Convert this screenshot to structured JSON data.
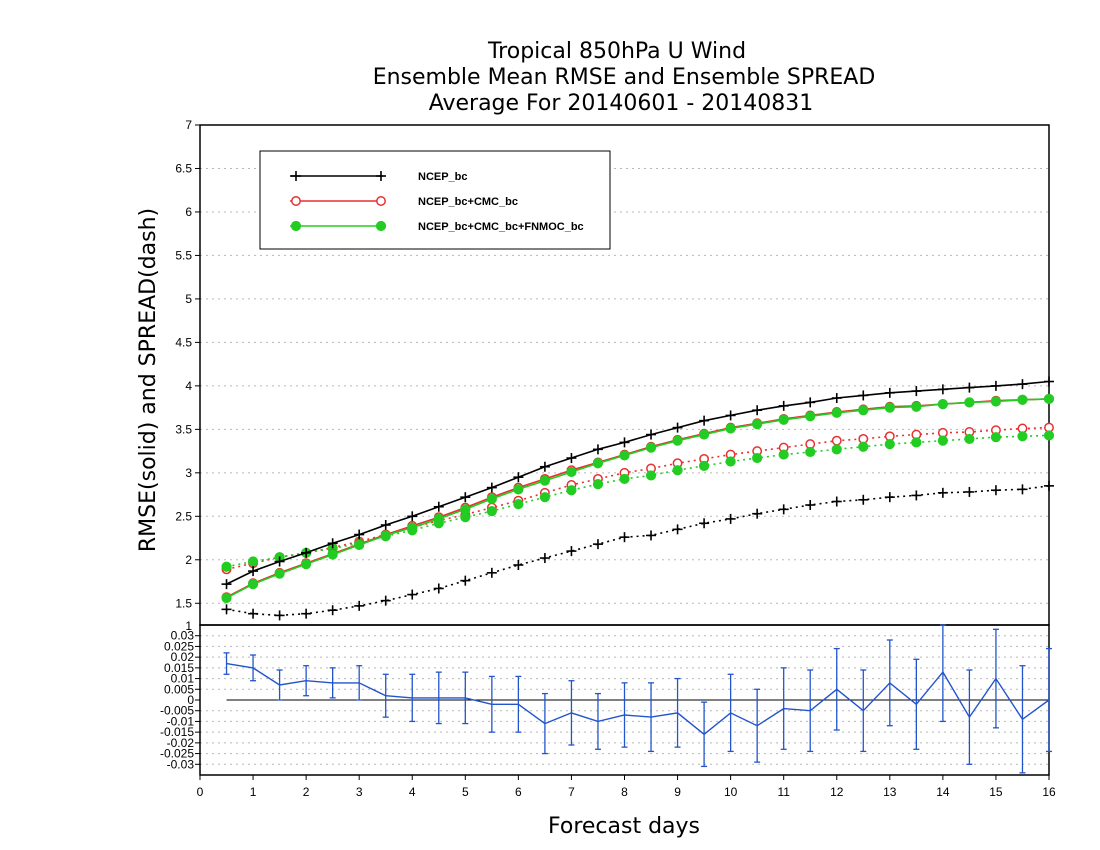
{
  "title_lines": [
    "Tropical 850hPa U Wind",
    "Ensemble Mean RMSE and Ensemble SPREAD",
    "Average For 20140601 - 20140831"
  ],
  "colors": {
    "ncep": "#000000",
    "ncep_cmc": "#e83030",
    "ncep_cmc_fnmoc": "#22cc22",
    "diff": "#2255cc"
  },
  "chart_data": [
    {
      "type": "line",
      "title": "Tropical 850hPa U Wind / Ensemble Mean RMSE and Ensemble SPREAD / Average For 20140601 - 20140831",
      "xlabel": "Forecast days",
      "ylabel": "RMSE(solid) and SPREAD(dash)",
      "xlim": [
        0,
        16
      ],
      "ylim": [
        1.25,
        7
      ],
      "xticks": [
        "0",
        "1",
        "2",
        "3",
        "4",
        "5",
        "6",
        "7",
        "8",
        "9",
        "10",
        "11",
        "12",
        "13",
        "14",
        "15",
        "16"
      ],
      "yticks": [
        "1.5",
        "2",
        "2.5",
        "3",
        "3.5",
        "4",
        "4.5",
        "5",
        "5.5",
        "6",
        "6.5",
        "7"
      ],
      "grid": true,
      "legend_position": "top-left",
      "x": [
        0.5,
        1,
        1.5,
        2,
        2.5,
        3,
        3.5,
        4,
        4.5,
        5,
        5.5,
        6,
        6.5,
        7,
        7.5,
        8,
        8.5,
        9,
        9.5,
        10,
        10.5,
        11,
        11.5,
        12,
        12.5,
        13,
        13.5,
        14,
        14.5,
        15,
        15.5,
        16
      ],
      "series": [
        {
          "name": "NCEP_bc",
          "style": "solid",
          "marker": "plus",
          "color": "#000000",
          "values": [
            1.72,
            1.87,
            1.98,
            2.08,
            2.19,
            2.29,
            2.4,
            2.5,
            2.61,
            2.72,
            2.83,
            2.95,
            3.07,
            3.17,
            3.27,
            3.35,
            3.44,
            3.52,
            3.6,
            3.66,
            3.72,
            3.77,
            3.81,
            3.86,
            3.89,
            3.92,
            3.94,
            3.96,
            3.98,
            4.0,
            4.02,
            4.05
          ]
        },
        {
          "name": "NCEP_bc+CMC_bc",
          "style": "solid",
          "marker": "open-circle",
          "color": "#e83030",
          "values": [
            1.57,
            1.73,
            1.85,
            1.96,
            2.07,
            2.18,
            2.29,
            2.39,
            2.49,
            2.6,
            2.72,
            2.83,
            2.93,
            3.03,
            3.12,
            3.21,
            3.3,
            3.38,
            3.45,
            3.52,
            3.57,
            3.62,
            3.66,
            3.7,
            3.73,
            3.76,
            3.77,
            3.79,
            3.81,
            3.83,
            3.84,
            3.85
          ]
        },
        {
          "name": "NCEP_bc+CMC_bc+FNMOC_bc",
          "style": "solid",
          "marker": "filled-circle",
          "color": "#22cc22",
          "values": [
            1.56,
            1.72,
            1.84,
            1.95,
            2.06,
            2.17,
            2.28,
            2.37,
            2.47,
            2.58,
            2.7,
            2.81,
            2.91,
            3.01,
            3.11,
            3.2,
            3.29,
            3.37,
            3.44,
            3.51,
            3.56,
            3.61,
            3.65,
            3.69,
            3.72,
            3.75,
            3.76,
            3.79,
            3.81,
            3.82,
            3.84,
            3.85
          ]
        },
        {
          "name": "",
          "style": "dotted",
          "marker": "plus",
          "color": "#000000",
          "values": [
            1.43,
            1.38,
            1.36,
            1.38,
            1.42,
            1.47,
            1.53,
            1.6,
            1.67,
            1.76,
            1.85,
            1.94,
            2.02,
            2.1,
            2.18,
            2.26,
            2.28,
            2.35,
            2.42,
            2.47,
            2.53,
            2.58,
            2.63,
            2.67,
            2.69,
            2.72,
            2.74,
            2.77,
            2.78,
            2.8,
            2.81,
            2.85
          ]
        },
        {
          "name": "",
          "style": "dotted",
          "marker": "open-circle",
          "color": "#e83030",
          "values": [
            1.89,
            1.96,
            2.03,
            2.08,
            2.14,
            2.21,
            2.29,
            2.37,
            2.45,
            2.52,
            2.6,
            2.68,
            2.77,
            2.86,
            2.93,
            3.0,
            3.05,
            3.11,
            3.16,
            3.21,
            3.25,
            3.29,
            3.33,
            3.37,
            3.39,
            3.42,
            3.44,
            3.46,
            3.47,
            3.49,
            3.51,
            3.52
          ]
        },
        {
          "name": "",
          "style": "dotted",
          "marker": "filled-circle",
          "color": "#22cc22",
          "values": [
            1.92,
            1.98,
            2.03,
            2.08,
            2.13,
            2.19,
            2.27,
            2.34,
            2.42,
            2.49,
            2.56,
            2.64,
            2.72,
            2.8,
            2.87,
            2.93,
            2.97,
            3.03,
            3.08,
            3.13,
            3.17,
            3.21,
            3.24,
            3.27,
            3.3,
            3.33,
            3.35,
            3.37,
            3.39,
            3.41,
            3.42,
            3.43
          ]
        }
      ]
    },
    {
      "type": "line",
      "title": "",
      "xlabel": "Forecast days",
      "ylabel": "",
      "xlim": [
        0,
        16
      ],
      "ylim": [
        -0.035,
        0.035
      ],
      "yticks_left": [
        "0.03",
        "0.025",
        "0.02",
        "0.015",
        "0.01",
        "0.005",
        "0",
        "-0.005",
        "-0.01",
        "-0.015",
        "-0.02",
        "-0.025",
        "-0.03"
      ],
      "top_label": "1",
      "zero_line": true,
      "grid": true,
      "x": [
        0.5,
        1,
        1.5,
        2,
        2.5,
        3,
        3.5,
        4,
        4.5,
        5,
        5.5,
        6,
        6.5,
        7,
        7.5,
        8,
        8.5,
        9,
        9.5,
        10,
        10.5,
        11,
        11.5,
        12,
        12.5,
        13,
        13.5,
        14,
        14.5,
        15,
        15.5,
        16
      ],
      "series": [
        {
          "name": "",
          "color": "#2255cc",
          "values": [
            0.017,
            0.015,
            0.007,
            0.009,
            0.008,
            0.008,
            0.002,
            0.001,
            0.001,
            0.001,
            -0.002,
            -0.002,
            -0.011,
            -0.006,
            -0.01,
            -0.007,
            -0.008,
            -0.006,
            -0.016,
            -0.006,
            -0.012,
            -0.004,
            -0.005,
            0.005,
            -0.005,
            0.008,
            -0.002,
            0.013,
            -0.008,
            0.01,
            -0.009,
            0.0
          ],
          "errors": [
            0.005,
            0.006,
            0.007,
            0.007,
            0.007,
            0.008,
            0.01,
            0.011,
            0.012,
            0.012,
            0.013,
            0.013,
            0.014,
            0.015,
            0.013,
            0.015,
            0.016,
            0.016,
            0.015,
            0.018,
            0.017,
            0.019,
            0.019,
            0.019,
            0.019,
            0.02,
            0.021,
            0.023,
            0.022,
            0.023,
            0.025,
            0.024
          ]
        }
      ]
    }
  ]
}
